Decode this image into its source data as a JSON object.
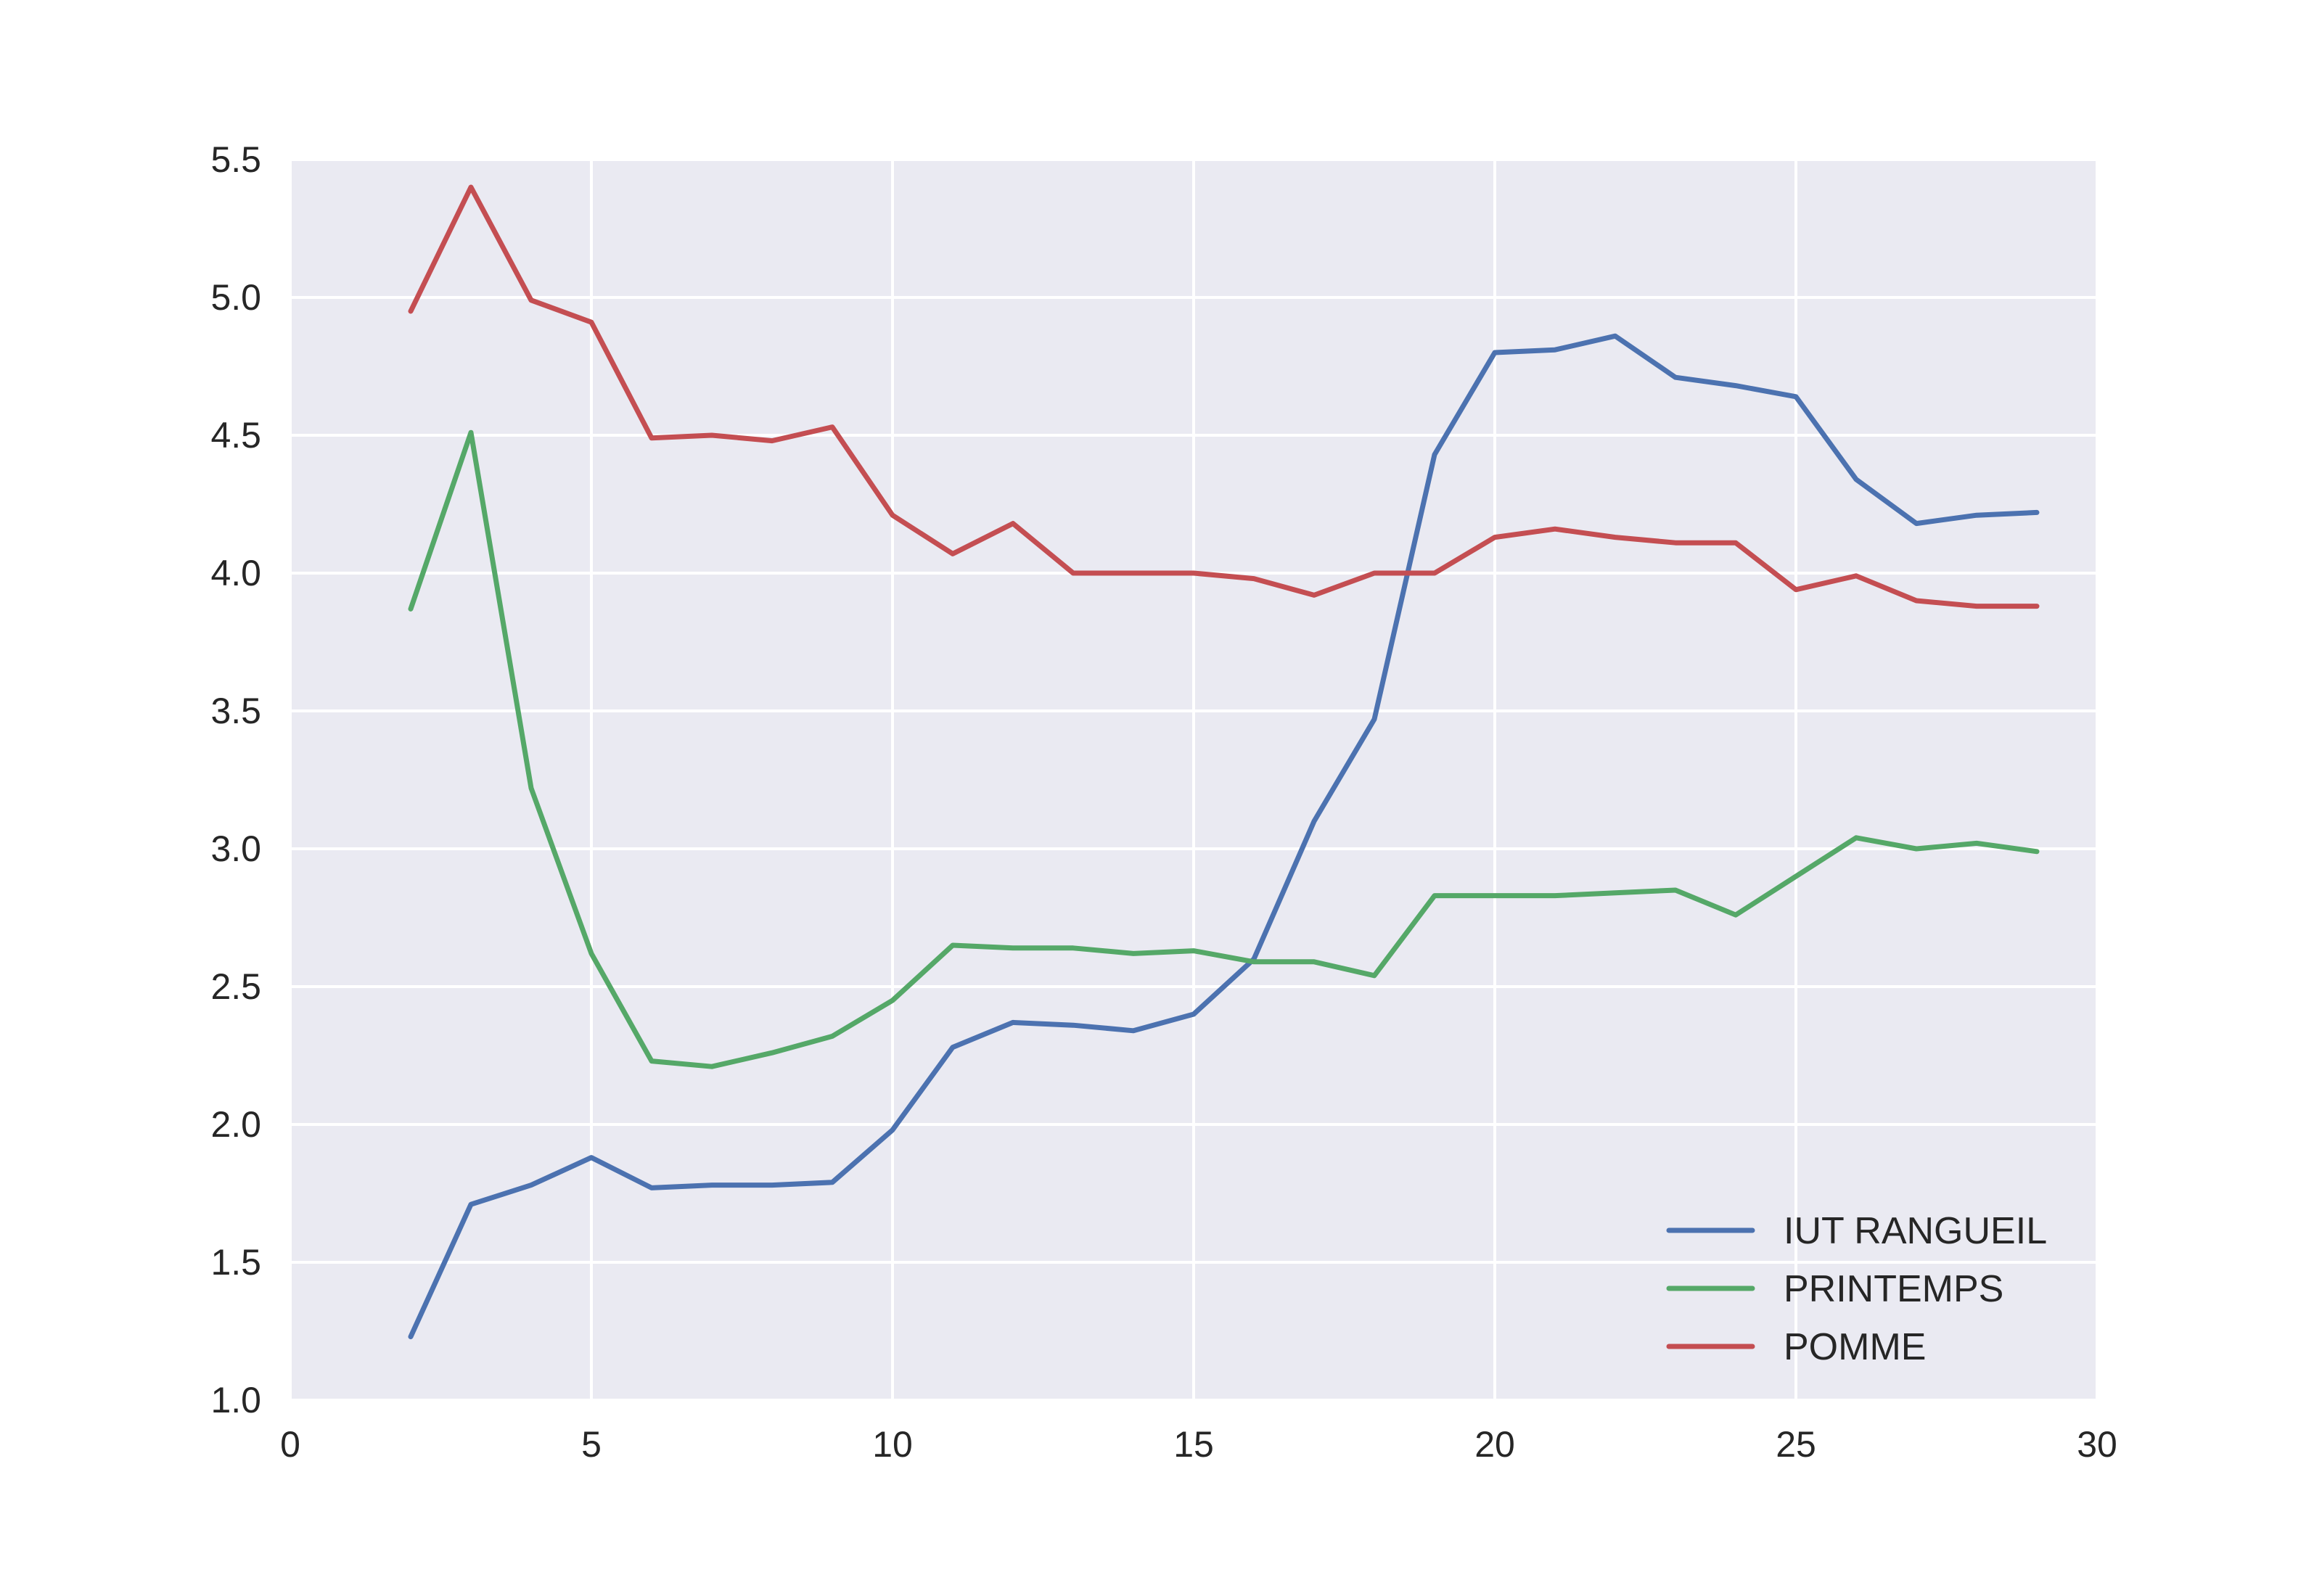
{
  "chart_data": {
    "type": "line",
    "title": "",
    "xlabel": "",
    "ylabel": "",
    "xlim": [
      0,
      30
    ],
    "ylim": [
      1.0,
      5.5
    ],
    "xticks": [
      "0",
      "5",
      "10",
      "15",
      "20",
      "25",
      "30"
    ],
    "yticks": [
      "1.0",
      "1.5",
      "2.0",
      "2.5",
      "3.0",
      "3.5",
      "4.0",
      "4.5",
      "5.0",
      "5.5"
    ],
    "grid": true,
    "legend_position": "lower-right",
    "x": [
      2,
      3,
      4,
      5,
      6,
      7,
      8,
      9,
      10,
      11,
      12,
      13,
      14,
      15,
      16,
      17,
      18,
      19,
      20,
      21,
      22,
      23,
      24,
      25,
      26,
      27,
      28,
      29
    ],
    "series": [
      {
        "name": "IUT RANGUEIL",
        "color": "#4c72b0",
        "values": [
          1.23,
          1.71,
          1.78,
          1.88,
          1.77,
          1.78,
          1.78,
          1.79,
          1.98,
          2.28,
          2.37,
          2.36,
          2.34,
          2.4,
          2.6,
          3.1,
          3.47,
          4.43,
          4.8,
          4.81,
          4.86,
          4.71,
          4.68,
          4.64,
          4.34,
          4.18,
          4.21,
          4.22
        ]
      },
      {
        "name": "PRINTEMPS",
        "color": "#55a868",
        "values": [
          3.87,
          4.51,
          3.22,
          2.62,
          2.23,
          2.21,
          2.26,
          2.32,
          2.45,
          2.65,
          2.64,
          2.64,
          2.62,
          2.63,
          2.59,
          2.59,
          2.54,
          2.83,
          2.83,
          2.83,
          2.84,
          2.85,
          2.76,
          2.9,
          3.04,
          3.0,
          3.02,
          2.99
        ]
      },
      {
        "name": "POMME",
        "color": "#c44e52",
        "values": [
          4.95,
          5.4,
          4.99,
          4.91,
          4.49,
          4.5,
          4.48,
          4.53,
          4.21,
          4.07,
          4.18,
          4.0,
          4.0,
          4.0,
          3.98,
          3.92,
          4.0,
          4.0,
          4.13,
          4.16,
          4.13,
          4.11,
          4.11,
          3.94,
          3.99,
          3.9,
          3.88,
          3.88
        ]
      }
    ]
  }
}
